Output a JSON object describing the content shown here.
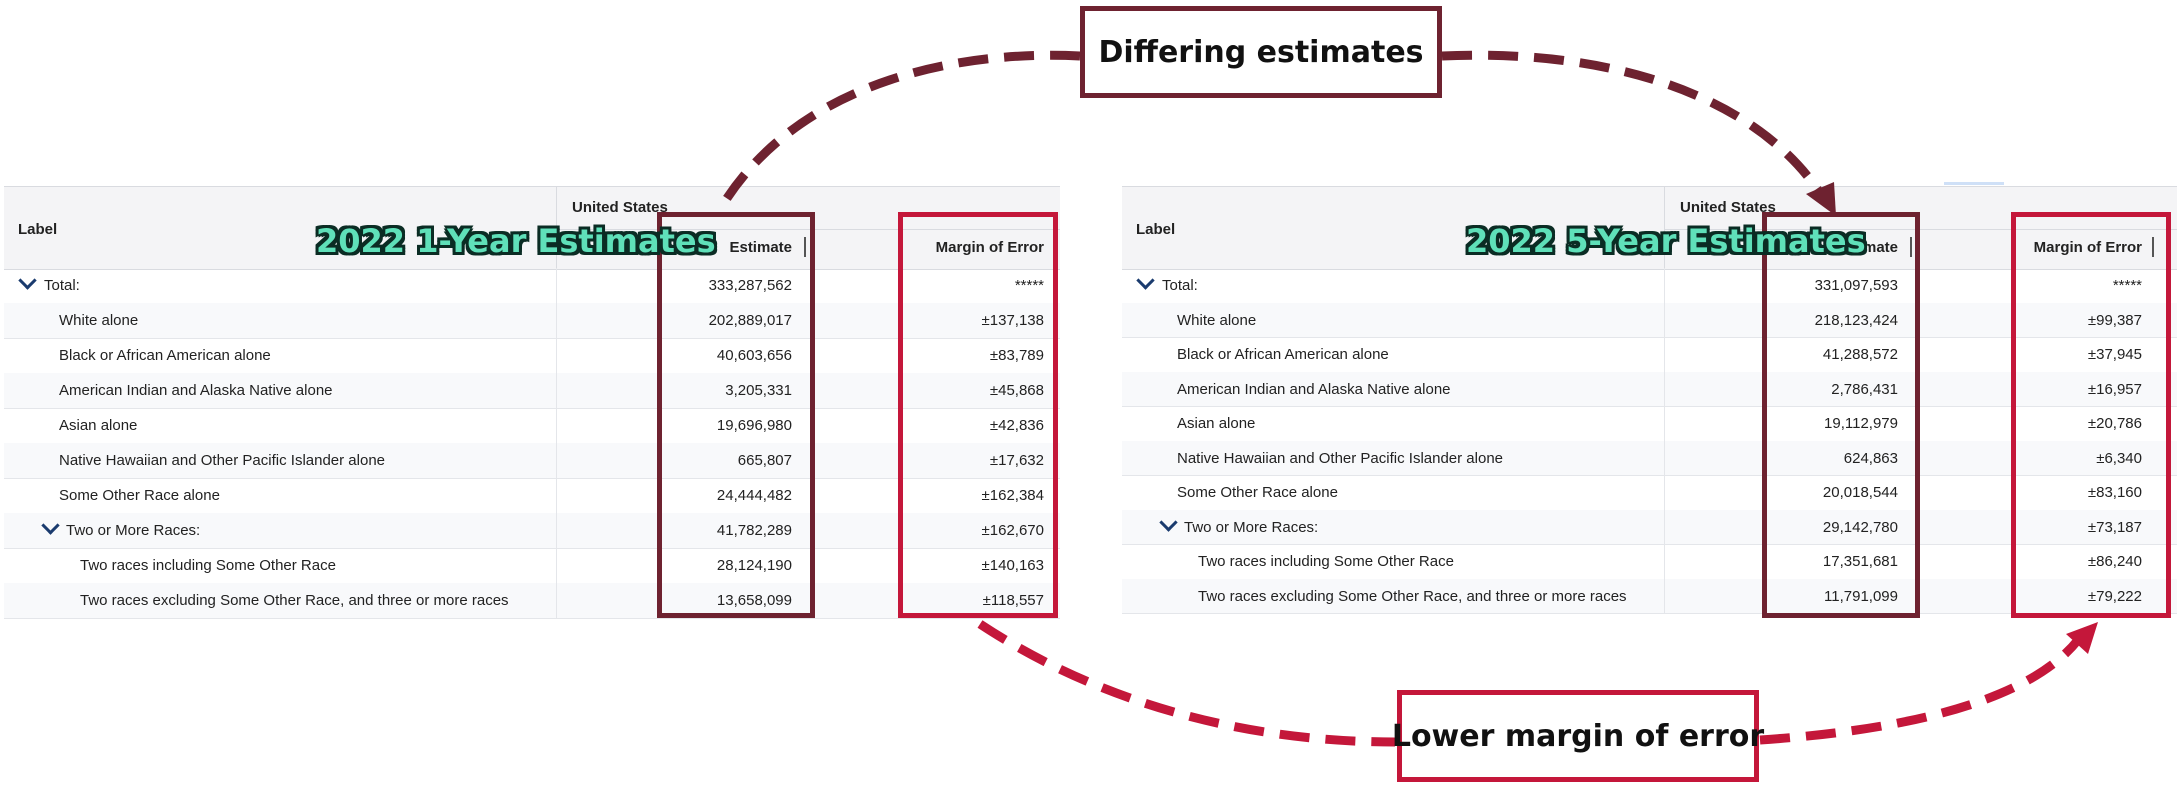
{
  "colors": {
    "dark_box": "#6e2230",
    "red_box": "#c4173a",
    "label_fill": "#5fe0b9",
    "chevron": "#1a3b6e"
  },
  "tables": [
    {
      "label_header": "Label",
      "geography": "United States",
      "estimate_header": "Estimate",
      "moe_header": "Margin of Error",
      "overlay_title": "2022 1-Year Estimates",
      "rows": [
        {
          "label": "Total:",
          "estimate": "333,287,562",
          "moe": "*****"
        },
        {
          "label": "White alone",
          "estimate": "202,889,017",
          "moe": "±137,138"
        },
        {
          "label": "Black or African American alone",
          "estimate": "40,603,656",
          "moe": "±83,789"
        },
        {
          "label": "American Indian and Alaska Native alone",
          "estimate": "3,205,331",
          "moe": "±45,868"
        },
        {
          "label": "Asian alone",
          "estimate": "19,696,980",
          "moe": "±42,836"
        },
        {
          "label": "Native Hawaiian and Other Pacific Islander alone",
          "estimate": "665,807",
          "moe": "±17,632"
        },
        {
          "label": "Some Other Race alone",
          "estimate": "24,444,482",
          "moe": "±162,384"
        },
        {
          "label": "Two or More Races:",
          "estimate": "41,782,289",
          "moe": "±162,670"
        },
        {
          "label": "Two races including Some Other Race",
          "estimate": "28,124,190",
          "moe": "±140,163"
        },
        {
          "label": "Two races excluding Some Other Race, and three or more races",
          "estimate": "13,658,099",
          "moe": "±118,557"
        }
      ]
    },
    {
      "label_header": "Label",
      "geography": "United States",
      "estimate_header": "Estimate",
      "moe_header": "Margin of Error",
      "overlay_title": "2022 5-Year Estimates",
      "rows": [
        {
          "label": "Total:",
          "estimate": "331,097,593",
          "moe": "*****"
        },
        {
          "label": "White alone",
          "estimate": "218,123,424",
          "moe": "±99,387"
        },
        {
          "label": "Black or African American alone",
          "estimate": "41,288,572",
          "moe": "±37,945"
        },
        {
          "label": "American Indian and Alaska Native alone",
          "estimate": "2,786,431",
          "moe": "±16,957"
        },
        {
          "label": "Asian alone",
          "estimate": "19,112,979",
          "moe": "±20,786"
        },
        {
          "label": "Native Hawaiian and Other Pacific Islander alone",
          "estimate": "624,863",
          "moe": "±6,340"
        },
        {
          "label": "Some Other Race alone",
          "estimate": "20,018,544",
          "moe": "±83,160"
        },
        {
          "label": "Two or More Races:",
          "estimate": "29,142,780",
          "moe": "±73,187"
        },
        {
          "label": "Two races including Some Other Race",
          "estimate": "17,351,681",
          "moe": "±86,240"
        },
        {
          "label": "Two races excluding Some Other Race, and three or more races",
          "estimate": "11,791,099",
          "moe": "±79,222"
        }
      ]
    }
  ],
  "callouts": {
    "top": "Differing estimates",
    "bottom": "Lower margin of error"
  }
}
